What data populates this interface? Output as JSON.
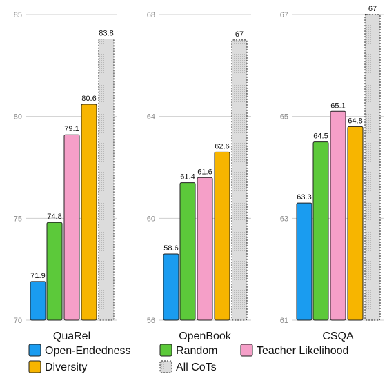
{
  "chart_data": [
    {
      "type": "bar",
      "title": "QuaRel",
      "ylim": [
        70,
        85
      ],
      "yticks": [
        70,
        75,
        80,
        85
      ],
      "values": [
        71.9,
        74.8,
        79.1,
        80.6,
        83.8
      ],
      "labels": [
        "71.9",
        "74.8",
        "79.1",
        "80.6",
        "83.8"
      ]
    },
    {
      "type": "bar",
      "title": "OpenBook",
      "ylim": [
        56,
        68
      ],
      "yticks": [
        56,
        60,
        64,
        68
      ],
      "values": [
        58.6,
        61.4,
        61.6,
        62.6,
        67
      ],
      "labels": [
        "58.6",
        "61.4",
        "61.6",
        "62.6",
        "67"
      ]
    },
    {
      "type": "bar",
      "title": "CSQA",
      "ylim": [
        61,
        67
      ],
      "yticks": [
        61,
        63,
        65,
        67
      ],
      "values": [
        63.3,
        64.5,
        65.1,
        64.8,
        67
      ],
      "labels": [
        "63.3",
        "64.5",
        "65.1",
        "64.8",
        "67"
      ]
    }
  ],
  "series": [
    {
      "name": "Open-Endedness",
      "color": "#1a9cf0",
      "pattern": "solid"
    },
    {
      "name": "Random",
      "color": "#5cc93a",
      "pattern": "solid"
    },
    {
      "name": "Teacher Likelihood",
      "color": "#f59fc8",
      "pattern": "solid"
    },
    {
      "name": "Diversity",
      "color": "#f7b500",
      "pattern": "solid"
    },
    {
      "name": "All CoTs",
      "color": "#d6d6d6",
      "pattern": "dotted"
    }
  ],
  "legend_position": "bottom",
  "grid": "horizontal"
}
